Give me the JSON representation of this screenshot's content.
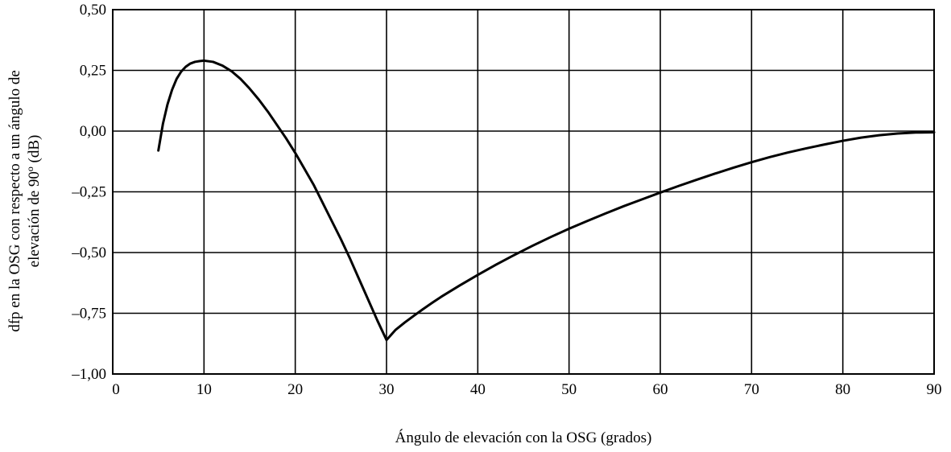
{
  "chart_data": {
    "type": "line",
    "title": "",
    "xlabel": "Ángulo de elevación con la OSG (grados)",
    "ylabel_lines": [
      "dfp en la OSG con respecto a un ángulo de",
      "elevación de 90º (dB)"
    ],
    "xlim": [
      0,
      90
    ],
    "ylim": [
      -1.0,
      0.5
    ],
    "x_ticks": [
      0,
      10,
      20,
      30,
      40,
      50,
      60,
      70,
      80,
      90
    ],
    "x_tick_labels": [
      "0",
      "10",
      "20",
      "30",
      "40",
      "50",
      "60",
      "70",
      "80",
      "90"
    ],
    "y_ticks": [
      -1.0,
      -0.75,
      -0.5,
      -0.25,
      0.0,
      0.25,
      0.5
    ],
    "y_tick_labels": [
      "–1,00",
      "–0,75",
      "–0,50",
      "–0,25",
      "0,00",
      "0,25",
      "0,50"
    ],
    "grid": true,
    "series": [
      {
        "x": [
          5,
          5.5,
          6,
          6.5,
          7,
          7.5,
          8,
          8.5,
          9,
          9.5,
          10,
          11,
          12,
          13,
          14,
          15,
          16,
          17,
          18,
          19,
          20,
          21,
          22,
          23,
          24,
          25,
          26,
          27,
          28,
          29,
          30,
          31,
          32,
          33,
          34,
          35,
          36,
          38,
          40,
          42,
          44,
          46,
          48,
          50,
          52,
          54,
          56,
          58,
          60,
          62,
          64,
          66,
          68,
          70,
          72,
          74,
          76,
          78,
          80,
          82,
          84,
          86,
          88,
          90
        ],
        "y": [
          -0.08,
          0.03,
          0.11,
          0.17,
          0.215,
          0.245,
          0.265,
          0.278,
          0.285,
          0.288,
          0.29,
          0.285,
          0.27,
          0.247,
          0.215,
          0.175,
          0.13,
          0.08,
          0.025,
          -0.03,
          -0.09,
          -0.155,
          -0.22,
          -0.295,
          -0.37,
          -0.445,
          -0.525,
          -0.61,
          -0.695,
          -0.78,
          -0.86,
          -0.818,
          -0.788,
          -0.76,
          -0.733,
          -0.707,
          -0.682,
          -0.636,
          -0.592,
          -0.55,
          -0.51,
          -0.472,
          -0.436,
          -0.402,
          -0.37,
          -0.339,
          -0.309,
          -0.281,
          -0.253,
          -0.226,
          -0.2,
          -0.175,
          -0.151,
          -0.128,
          -0.107,
          -0.088,
          -0.071,
          -0.055,
          -0.04,
          -0.027,
          -0.017,
          -0.01,
          -0.006,
          -0.005
        ]
      }
    ]
  }
}
